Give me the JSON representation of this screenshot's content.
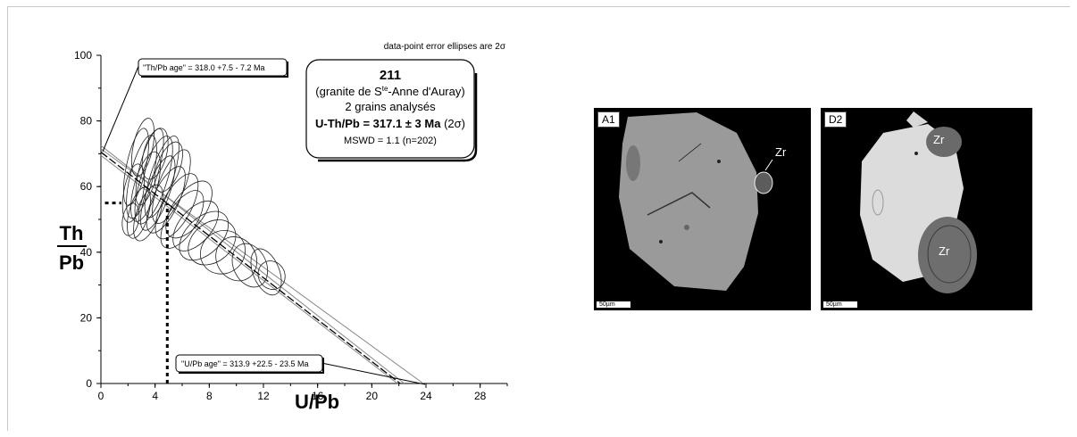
{
  "chart_data": {
    "type": "scatter",
    "subtype": "isochron error-ellipse plot",
    "corner_note": "data-point error ellipses are 2σ",
    "xlabel": "U/Pb",
    "ylabel_top": "Th",
    "ylabel_bottom": "Pb",
    "xlim": [
      0,
      30
    ],
    "ylim": [
      0,
      100
    ],
    "xticks": [
      0,
      4,
      8,
      12,
      16,
      20,
      24,
      28
    ],
    "yticks": [
      0,
      20,
      40,
      60,
      80,
      100
    ],
    "regression_line": {
      "x": [
        0,
        22.1
      ],
      "y": [
        70.5,
        0
      ]
    },
    "error_envelope": [
      {
        "x": [
          0,
          23.8
        ],
        "y": [
          71.5,
          0
        ]
      },
      {
        "x": [
          0,
          21.9
        ],
        "y": [
          69.5,
          0
        ]
      },
      {
        "x": [
          0,
          22.4
        ],
        "y": [
          72.5,
          0
        ]
      }
    ],
    "intercept_markers": {
      "x": 4.9,
      "y": 55
    },
    "ellipses": [
      {
        "x": 2.6,
        "y": 66,
        "rx": 0.6,
        "ry": 12,
        "tilt": 12
      },
      {
        "x": 3.0,
        "y": 63,
        "rx": 0.7,
        "ry": 13,
        "tilt": 14
      },
      {
        "x": 3.3,
        "y": 60,
        "rx": 0.7,
        "ry": 11,
        "tilt": 16
      },
      {
        "x": 3.6,
        "y": 66,
        "rx": 0.6,
        "ry": 12,
        "tilt": 15
      },
      {
        "x": 3.9,
        "y": 62,
        "rx": 0.8,
        "ry": 14,
        "tilt": 18
      },
      {
        "x": 4.2,
        "y": 58,
        "rx": 0.7,
        "ry": 12,
        "tilt": 20
      },
      {
        "x": 4.5,
        "y": 63,
        "rx": 0.7,
        "ry": 13,
        "tilt": 18
      },
      {
        "x": 2.4,
        "y": 58,
        "rx": 0.6,
        "ry": 9,
        "tilt": 10
      },
      {
        "x": 2.8,
        "y": 52,
        "rx": 0.6,
        "ry": 8,
        "tilt": 15
      },
      {
        "x": 3.5,
        "y": 52,
        "rx": 0.7,
        "ry": 9,
        "tilt": 20
      },
      {
        "x": 4.8,
        "y": 56,
        "rx": 0.8,
        "ry": 11,
        "tilt": 25
      },
      {
        "x": 5.2,
        "y": 60,
        "rx": 0.8,
        "ry": 12,
        "tilt": 22
      },
      {
        "x": 5.6,
        "y": 54,
        "rx": 0.9,
        "ry": 11,
        "tilt": 28
      },
      {
        "x": 6.0,
        "y": 50,
        "rx": 0.9,
        "ry": 10,
        "tilt": 32
      },
      {
        "x": 6.5,
        "y": 53,
        "rx": 1.0,
        "ry": 10,
        "tilt": 35
      },
      {
        "x": 7.0,
        "y": 48,
        "rx": 1.0,
        "ry": 9,
        "tilt": 40
      },
      {
        "x": 7.6,
        "y": 45,
        "rx": 1.1,
        "ry": 9,
        "tilt": 45
      },
      {
        "x": 8.2,
        "y": 43,
        "rx": 1.2,
        "ry": 8,
        "tilt": 50
      },
      {
        "x": 9.0,
        "y": 40,
        "rx": 1.3,
        "ry": 7,
        "tilt": 55
      },
      {
        "x": 10.0,
        "y": 38,
        "rx": 1.4,
        "ry": 6,
        "tilt": 60
      },
      {
        "x": 11.0,
        "y": 36,
        "rx": 1.4,
        "ry": 5,
        "tilt": 65
      },
      {
        "x": 12.2,
        "y": 34,
        "rx": 1.5,
        "ry": 4,
        "tilt": 68
      },
      {
        "x": 12.6,
        "y": 33,
        "rx": 0.9,
        "ry": 4,
        "tilt": 60
      },
      {
        "x": 3.1,
        "y": 72,
        "rx": 0.6,
        "ry": 9,
        "tilt": 12
      },
      {
        "x": 4.0,
        "y": 70,
        "rx": 0.7,
        "ry": 8,
        "tilt": 15
      },
      {
        "x": 5.0,
        "y": 66,
        "rx": 0.7,
        "ry": 8,
        "tilt": 20
      },
      {
        "x": 2.2,
        "y": 50,
        "rx": 0.5,
        "ry": 5,
        "tilt": 10
      }
    ],
    "annotations": {
      "th_pb_age": "\"Th/Pb age\" =  318.0 +7.5 - 7.2  Ma",
      "u_pb_age": "\"U/Pb age\" = 313.9 +22.5 - 23.5 Ma"
    },
    "info_box": {
      "sample": "211",
      "location_pre": "(granite de S",
      "location_sup": "te",
      "location_post": "-Anne d'Auray)",
      "grains": "2 grains analysés",
      "age_bold": "U-Th/Pb = 317.1 ± 3 Ma",
      "age_sigma": " (2σ)",
      "mswd": "MSWD = 1.1 (n=202)"
    }
  },
  "images": [
    {
      "label": "A1",
      "scale": "50µm",
      "mineral_label": "Zr"
    },
    {
      "label": "D2",
      "scale": "50µm",
      "mineral_labels": [
        "Zr",
        "Zr"
      ]
    }
  ],
  "colors": {
    "ellipse": "#222222",
    "envelope": "#888888",
    "panel_bg": "#000000"
  }
}
